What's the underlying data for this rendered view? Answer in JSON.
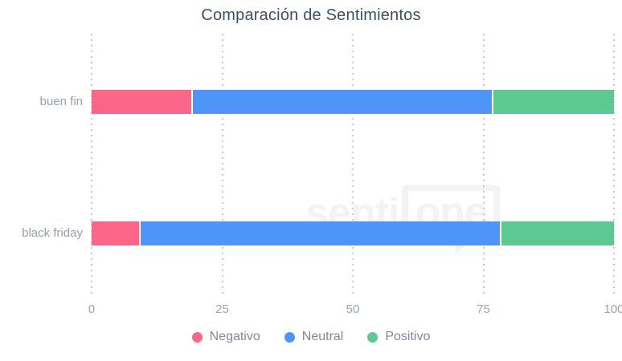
{
  "title": "Comparación de Sentimientos",
  "watermark": {
    "prefix": "senti",
    "bubble": "one"
  },
  "colors": {
    "negativo": "#fa6588",
    "neutral": "#4f94f8",
    "positivo": "#5dc992",
    "title_text": "#3e4d68",
    "axis_text": "#9aa2b5",
    "category_text": "#959db1",
    "legend_text": "#7f889c",
    "gridline": "#c6c9d0",
    "watermark": "#f2f3f5"
  },
  "chart_data": {
    "type": "bar",
    "orientation": "horizontal",
    "stacked": true,
    "title": "Comparación de Sentimientos",
    "xlabel": "",
    "ylabel": "",
    "categories": [
      "buen fin",
      "black friday"
    ],
    "series": [
      {
        "name": "Negativo",
        "color": "#fa6588",
        "values": [
          19.4,
          9.4
        ]
      },
      {
        "name": "Neutral",
        "color": "#4f94f8",
        "values": [
          57.6,
          69.1
        ]
      },
      {
        "name": "Positivo",
        "color": "#5dc992",
        "values": [
          23.0,
          21.5
        ]
      }
    ],
    "x_ticks": [
      0,
      25,
      50,
      75,
      100
    ],
    "xlim": [
      0,
      100
    ],
    "grid": "vertical-dotted",
    "legend_position": "bottom"
  }
}
